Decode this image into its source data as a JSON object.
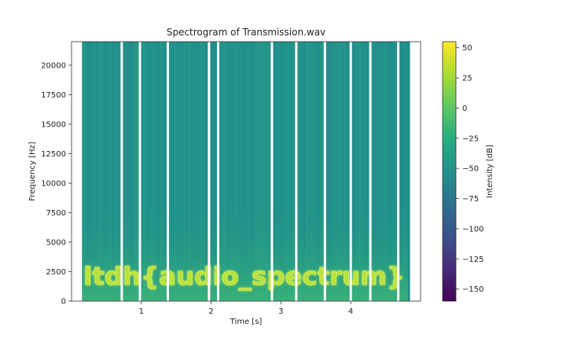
{
  "chart_data": {
    "type": "heatmap",
    "title": "Spectrogram of Transmission.wav",
    "xlabel": "Time [s]",
    "ylabel": "Frequency [Hz]",
    "xlim": [
      0,
      5.0
    ],
    "ylim": [
      0,
      22000
    ],
    "x_ticks": [
      1,
      2,
      3,
      4
    ],
    "y_ticks": [
      0,
      2500,
      5000,
      7500,
      10000,
      12500,
      15000,
      17500,
      20000
    ],
    "data_x_extent": [
      0.15,
      4.82
    ],
    "silence_gaps_s": [
      0.72,
      0.98,
      1.38,
      1.97,
      2.1,
      2.87,
      3.22,
      3.63,
      4.0,
      4.28,
      4.68
    ],
    "embedded_text": "ltdh{audio_spectrum}",
    "embedded_text_freq_range_hz": [
      1500,
      3300
    ],
    "background_intensity_db": -50,
    "colormap": "viridis",
    "colorbar": {
      "label": "Intensity [dB]",
      "range": [
        -160,
        55
      ],
      "ticks": [
        50,
        25,
        0,
        -25,
        -50,
        -75,
        -100,
        -125,
        -150
      ]
    }
  }
}
